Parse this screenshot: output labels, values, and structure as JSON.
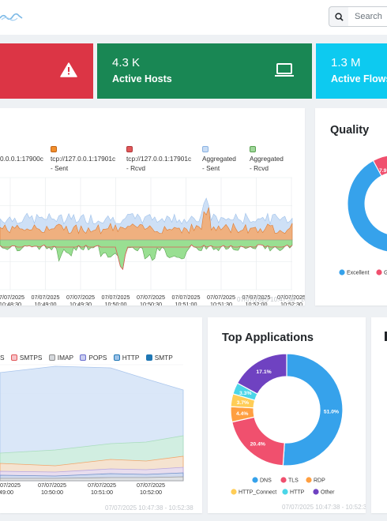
{
  "header": {
    "search_placeholder": "Search",
    "icons": {
      "logo": "wave-logo",
      "search": "search-icon"
    }
  },
  "stats": [
    {
      "value": "",
      "label": "",
      "color": "#dc3545",
      "icon": "warning-icon"
    },
    {
      "value": "4.3 K",
      "label": "Active Hosts",
      "color": "#198754",
      "icon": "laptop-icon"
    },
    {
      "value": "1.3 M",
      "label": "Active Flows",
      "color": "#0dcaf0",
      "icon": ""
    }
  ],
  "traffic": {
    "legend": [
      {
        "label": "0.0.0.1:17900c\n",
        "color": "#f28e2b",
        "partial": true
      },
      {
        "label": "tcp://127.0.0.1:17901c\n- Sent",
        "color": "#f28e2b"
      },
      {
        "label": "tcp://127.0.0.1:17901c\n- Rcvd",
        "color": "#e15759"
      },
      {
        "label": "Aggregated\n- Sent",
        "color": "#a6c8f0"
      },
      {
        "label": "Aggregated\n- Rcvd",
        "color": "#59a14f"
      }
    ],
    "x_ticks": [
      "07/07/2025\n10:48:30",
      "07/07/2025\n10:49:00",
      "07/07/2025\n10:49:30",
      "07/07/2025\n10:50:00",
      "07/07/2025\n10:50:30",
      "07/07/2025\n10:51:00",
      "07/07/2025\n10:51:30",
      "07/07/2025\n10:52:00",
      "07/07/2025\n10:52:30"
    ],
    "time_range": "07/07/2025 10:47:38 - 10:52:38"
  },
  "quality": {
    "title": "Quality",
    "visible_label": "7.9",
    "legend": [
      {
        "label": "Excellent",
        "color": "#36a2eb"
      },
      {
        "label": "G",
        "color": "#f0506e"
      }
    ]
  },
  "protocols": {
    "legend": [
      {
        "label": "S",
        "color": "#4e79a7"
      },
      {
        "label": "SMTPS",
        "color": "#e15759"
      },
      {
        "label": "IMAP",
        "color": "#8c8c8c"
      },
      {
        "label": "POPS",
        "color": "#6b6ecf"
      },
      {
        "label": "HTTP",
        "color": "#1f77b4"
      },
      {
        "label": "SMTP",
        "color": "#1f77b4"
      }
    ],
    "x_ticks": [
      "07/07/2025\n49:00",
      "07/07/2025\n10:50:00",
      "07/07/2025\n10:51:00",
      "07/07/2025\n10:52:00"
    ],
    "time_range": "07/07/2025 10:47:38 - 10:52:38"
  },
  "top_apps": {
    "title": "Top Applications",
    "slice_labels": [
      "51.0%",
      "20.4%",
      "4.4%",
      "3.7%",
      "3.3%",
      "17.1%"
    ],
    "legend": [
      {
        "label": "DNS",
        "color": "#36a2eb"
      },
      {
        "label": "TLS",
        "color": "#f0506e"
      },
      {
        "label": "RDP",
        "color": "#ff9f40"
      },
      {
        "label": "HTTP_Connect",
        "color": "#ffcd56"
      },
      {
        "label": "HTTP",
        "color": "#4bd6e8"
      },
      {
        "label": "Other",
        "color": "#6f42c1"
      }
    ],
    "time_range": "07/07/2025 10:47:38 - 10:52:38"
  },
  "chart_data": [
    {
      "type": "area",
      "title": "",
      "x": [
        "10:48:30",
        "10:49:00",
        "10:49:30",
        "10:50:00",
        "10:50:30",
        "10:51:00",
        "10:51:30",
        "10:52:00",
        "10:52:30"
      ],
      "series": [
        {
          "name": "tcp://127.0.0.1:17901c - Sent",
          "values": [
            0.55,
            0.5,
            0.52,
            0.48,
            0.62,
            0.5,
            0.55,
            0.5,
            0.56
          ]
        },
        {
          "name": "tcp://127.0.0.1:17901c - Rcvd",
          "values": [
            0.42,
            0.4,
            0.38,
            0.2,
            0.35,
            0.4,
            0.42,
            0.4,
            0.44
          ]
        },
        {
          "name": "Aggregated - Sent",
          "values": [
            0.62,
            0.6,
            0.64,
            0.58,
            0.7,
            0.62,
            0.64,
            0.6,
            0.62
          ]
        },
        {
          "name": "Aggregated - Rcvd",
          "values": [
            0.4,
            0.35,
            0.3,
            0.05,
            0.32,
            0.3,
            0.38,
            0.38,
            0.42
          ]
        }
      ],
      "legend": "top"
    },
    {
      "type": "pie",
      "title": "Quality",
      "categories": [
        "Excellent",
        "G"
      ],
      "values": [
        92.1,
        7.9
      ],
      "labels": [
        "",
        "7.9"
      ]
    },
    {
      "type": "area",
      "title": "",
      "x": [
        "10:49:00",
        "10:50:00",
        "10:51:00",
        "10:52:00"
      ],
      "series": [
        {
          "name": "SMTPS",
          "values": [
            30,
            25,
            28,
            22
          ]
        },
        {
          "name": "IMAP",
          "values": [
            50,
            48,
            52,
            42
          ]
        },
        {
          "name": "POPS",
          "values": [
            10,
            9,
            10,
            8
          ]
        },
        {
          "name": "HTTP",
          "values": [
            12,
            11,
            12,
            10
          ]
        },
        {
          "name": "SMTP",
          "values": [
            5,
            4,
            5,
            4
          ]
        }
      ],
      "legend": "top"
    },
    {
      "type": "pie",
      "title": "Top Applications",
      "categories": [
        "DNS",
        "TLS",
        "RDP",
        "HTTP_Connect",
        "HTTP",
        "Other"
      ],
      "values": [
        51.0,
        20.4,
        4.4,
        3.7,
        3.3,
        17.1
      ],
      "legend": "bottom"
    }
  ]
}
